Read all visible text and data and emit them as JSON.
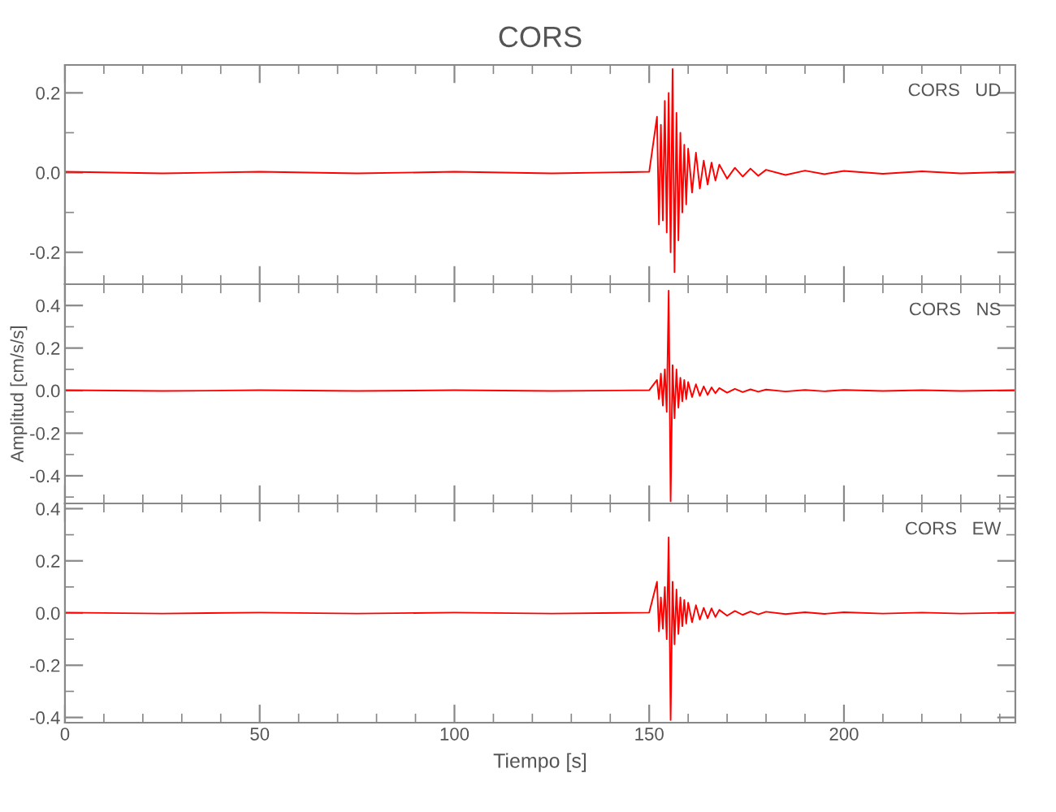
{
  "chart_data": [
    {
      "type": "line",
      "title": "CORS",
      "annotations": [
        "CORS   UD"
      ],
      "tick_labels": "y",
      "xlim": [
        0,
        244
      ],
      "xticks": [
        0,
        50,
        100,
        150,
        200
      ],
      "ylim": [
        -0.28,
        0.27
      ],
      "yticks": [
        {
          "value": -0.2,
          "label": "-0.2"
        },
        {
          "value": 0,
          "label": "0.0"
        },
        {
          "value": 0.2,
          "label": "0.2"
        }
      ],
      "grid": false,
      "legend": false,
      "series": [
        {
          "color": "#ff0000",
          "x": [
            0,
            25,
            50,
            75,
            100,
            125,
            150,
            152,
            152.5,
            153,
            153.5,
            154,
            154.5,
            155,
            155.5,
            156,
            156.5,
            157,
            157.5,
            158,
            158.5,
            159,
            159.5,
            160,
            161,
            162,
            163,
            164,
            165,
            166,
            167,
            168,
            170,
            172,
            174,
            176,
            178,
            180,
            185,
            190,
            195,
            200,
            210,
            220,
            230,
            244
          ],
          "values": [
            0.002,
            -0.002,
            0.002,
            -0.002,
            0.002,
            -0.002,
            0.002,
            0.14,
            -0.13,
            0.12,
            -0.12,
            0.18,
            -0.15,
            0.2,
            -0.2,
            0.26,
            -0.25,
            0.15,
            -0.17,
            0.1,
            -0.1,
            0.07,
            -0.08,
            0.06,
            -0.05,
            0.05,
            -0.04,
            0.03,
            -0.03,
            0.025,
            -0.02,
            0.02,
            -0.015,
            0.012,
            -0.01,
            0.01,
            -0.008,
            0.007,
            -0.006,
            0.005,
            -0.004,
            0.004,
            -0.003,
            0.003,
            -0.002,
            0.002
          ]
        }
      ]
    },
    {
      "type": "line",
      "ylabel": "Amplitud [cm/s/s]",
      "annotations": [
        "CORS   NS"
      ],
      "tick_labels": "y",
      "xlim": [
        0,
        244
      ],
      "xticks": [
        0,
        50,
        100,
        150,
        200
      ],
      "ylim": [
        -0.53,
        0.5
      ],
      "yticks": [
        {
          "value": -0.4,
          "label": "-0.4"
        },
        {
          "value": -0.2,
          "label": "-0.2"
        },
        {
          "value": 0,
          "label": "0.0"
        },
        {
          "value": 0.2,
          "label": "0.2"
        },
        {
          "value": 0.4,
          "label": "0.4"
        }
      ],
      "grid": false,
      "legend": false,
      "series": [
        {
          "color": "#ff0000",
          "x": [
            0,
            25,
            50,
            75,
            100,
            125,
            150,
            152,
            152.5,
            153,
            153.5,
            154,
            154.5,
            155,
            155.5,
            156,
            156.5,
            157,
            157.5,
            158,
            158.5,
            159,
            159.5,
            160,
            161,
            162,
            163,
            164,
            165,
            166,
            167,
            168,
            170,
            172,
            174,
            176,
            178,
            180,
            185,
            190,
            195,
            200,
            210,
            220,
            230,
            244
          ],
          "values": [
            0.002,
            -0.002,
            0.002,
            -0.002,
            0.002,
            -0.002,
            0.002,
            0.05,
            -0.04,
            0.08,
            -0.07,
            0.1,
            -0.1,
            0.47,
            -0.52,
            0.12,
            -0.13,
            0.1,
            -0.08,
            0.06,
            -0.05,
            0.05,
            -0.04,
            0.04,
            -0.03,
            0.03,
            -0.025,
            0.02,
            -0.02,
            0.015,
            -0.012,
            0.012,
            -0.01,
            0.008,
            -0.007,
            0.006,
            -0.005,
            0.005,
            -0.004,
            0.003,
            -0.003,
            0.003,
            -0.002,
            0.002,
            -0.002,
            0.002
          ]
        }
      ]
    },
    {
      "type": "line",
      "xlabel": "Tiempo [s]",
      "annotations": [
        "CORS   EW"
      ],
      "xlim": [
        0,
        244
      ],
      "xticks": [
        0,
        50,
        100,
        150,
        200
      ],
      "ylim": [
        -0.42,
        0.42
      ],
      "yticks": [
        {
          "value": -0.4,
          "label": "-0.4"
        },
        {
          "value": -0.2,
          "label": "-0.2"
        },
        {
          "value": 0,
          "label": "0.0"
        },
        {
          "value": 0.2,
          "label": "0.2"
        },
        {
          "value": 0.4,
          "label": "0.4"
        }
      ],
      "grid": false,
      "legend": false,
      "series": [
        {
          "color": "#ff0000",
          "x": [
            0,
            25,
            50,
            75,
            100,
            125,
            150,
            152,
            152.5,
            153,
            153.5,
            154,
            154.5,
            155,
            155.5,
            156,
            156.5,
            157,
            157.5,
            158,
            158.5,
            159,
            159.5,
            160,
            161,
            162,
            163,
            164,
            165,
            166,
            167,
            168,
            170,
            172,
            174,
            176,
            178,
            180,
            185,
            190,
            195,
            200,
            210,
            220,
            230,
            244
          ],
          "values": [
            0.002,
            -0.002,
            0.002,
            -0.002,
            0.002,
            -0.002,
            0.002,
            0.12,
            -0.07,
            0.06,
            -0.06,
            0.1,
            -0.1,
            0.29,
            -0.41,
            0.12,
            -0.12,
            0.09,
            -0.08,
            0.06,
            -0.05,
            0.05,
            -0.04,
            0.04,
            -0.035,
            0.03,
            -0.025,
            0.02,
            -0.02,
            0.018,
            -0.015,
            0.012,
            -0.01,
            0.008,
            -0.007,
            0.006,
            -0.005,
            0.005,
            -0.004,
            0.003,
            -0.003,
            0.003,
            -0.002,
            0.002,
            -0.002,
            0.002
          ]
        }
      ]
    }
  ]
}
